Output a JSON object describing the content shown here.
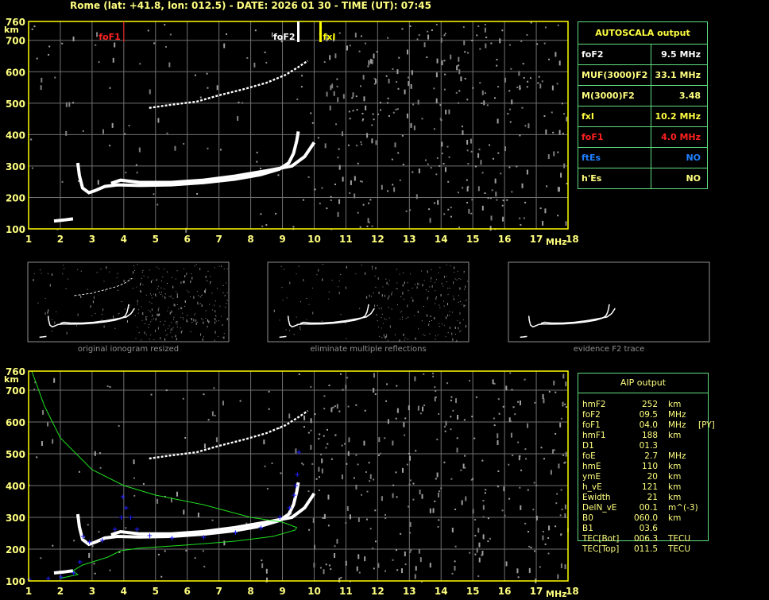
{
  "header": {
    "title": "Rome (lat: +41.8, lon: 012.5) - DATE: 2026 01 30 - TIME (UT): 07:45"
  },
  "markers": [
    {
      "label": "foF1",
      "freq": 4.0,
      "color": "#ff2020"
    },
    {
      "label": "foF2",
      "freq": 9.5,
      "color": "#ffffff"
    },
    {
      "label": "fxI",
      "freq": 10.2,
      "color": "#ffff00"
    }
  ],
  "autoscala": {
    "title": "AUTOSCALA output",
    "rows": [
      {
        "name": "foF2",
        "value": "9.5 MHz",
        "color": "#ffffff"
      },
      {
        "name": "MUF(3000)F2",
        "value": "33.1 MHz",
        "color": "#ffff80"
      },
      {
        "name": "M(3000)F2",
        "value": "3.48",
        "color": "#ffff80"
      },
      {
        "name": "fxI",
        "value": "10.2 MHz",
        "color": "#ffff40"
      },
      {
        "name": "foF1",
        "value": "4.0 MHz",
        "color": "#ff2020"
      },
      {
        "name": "ftEs",
        "value": "NO",
        "color": "#2080ff"
      },
      {
        "name": "h'Es",
        "value": "NO",
        "color": "#ffff80"
      }
    ]
  },
  "aip": {
    "title": "AIP output",
    "rows": [
      {
        "name": "hmF2",
        "value": "252",
        "unit": "km",
        "extra": ""
      },
      {
        "name": "foF2",
        "value": "09.5",
        "unit": "MHz",
        "extra": ""
      },
      {
        "name": "foF1",
        "value": "04.0",
        "unit": "MHz",
        "extra": "[PY]"
      },
      {
        "name": "hmF1",
        "value": "188",
        "unit": "km",
        "extra": ""
      },
      {
        "name": "D1",
        "value": "01.3",
        "unit": "",
        "extra": ""
      },
      {
        "name": "foE",
        "value": "2.7",
        "unit": "MHz",
        "extra": ""
      },
      {
        "name": "hmE",
        "value": "110",
        "unit": "km",
        "extra": ""
      },
      {
        "name": "ymE",
        "value": "20",
        "unit": "km",
        "extra": ""
      },
      {
        "name": "h_vE",
        "value": "121",
        "unit": "km",
        "extra": ""
      },
      {
        "name": "Ewidth",
        "value": "21",
        "unit": "km",
        "extra": ""
      },
      {
        "name": "DelN_vE",
        "value": "00.1",
        "unit": "m^(-3)",
        "extra": ""
      },
      {
        "name": "B0",
        "value": "060.0",
        "unit": "km",
        "extra": ""
      },
      {
        "name": "B1",
        "value": "03.6",
        "unit": "",
        "extra": ""
      },
      {
        "name": "TEC[Bot]",
        "value": "006.3",
        "unit": "TECU",
        "extra": ""
      },
      {
        "name": "TEC[Top]",
        "value": "011.5",
        "unit": "TECU",
        "extra": ""
      }
    ]
  },
  "thumbnails": [
    {
      "caption": "original ionogram resized"
    },
    {
      "caption": "eliminate multiple reflections"
    },
    {
      "caption": "evidence F2 trace"
    }
  ],
  "chart_data": {
    "type": "scatter",
    "xlabel": "MHz",
    "ylabel": "km",
    "xlim": [
      1,
      18
    ],
    "ylim": [
      100,
      760
    ],
    "x_ticks": [
      "1",
      "2",
      "3",
      "4",
      "5",
      "6",
      "7",
      "8",
      "9",
      "10",
      "11",
      "12",
      "13",
      "14",
      "15",
      "16",
      "17",
      "18"
    ],
    "y_ticks": [
      "100",
      "200",
      "300",
      "400",
      "500",
      "600",
      "700",
      "760"
    ],
    "grid": true,
    "traces": {
      "E": [
        [
          1.8,
          125
        ],
        [
          2.1,
          128
        ],
        [
          2.4,
          132
        ]
      ],
      "F_ordinary": [
        [
          2.55,
          310
        ],
        [
          2.6,
          270
        ],
        [
          2.7,
          230
        ],
        [
          2.9,
          215
        ],
        [
          3.1,
          222
        ],
        [
          3.4,
          235
        ],
        [
          3.8,
          240
        ],
        [
          4.5,
          238
        ],
        [
          5.5,
          240
        ],
        [
          6.5,
          247
        ],
        [
          7.5,
          258
        ],
        [
          8.3,
          272
        ],
        [
          8.9,
          290
        ],
        [
          9.2,
          310
        ],
        [
          9.35,
          340
        ],
        [
          9.45,
          380
        ],
        [
          9.5,
          410
        ]
      ],
      "F_extraordinary": [
        [
          3.6,
          245
        ],
        [
          3.9,
          255
        ],
        [
          4.5,
          248
        ],
        [
          5.5,
          248
        ],
        [
          6.5,
          255
        ],
        [
          7.5,
          268
        ],
        [
          8.5,
          285
        ],
        [
          9.3,
          300
        ],
        [
          9.7,
          330
        ],
        [
          10.0,
          375
        ]
      ],
      "second_hop": [
        [
          4.8,
          485
        ],
        [
          5.5,
          495
        ],
        [
          6.3,
          505
        ],
        [
          7,
          525
        ],
        [
          7.8,
          545
        ],
        [
          8.5,
          565
        ],
        [
          9.1,
          590
        ],
        [
          9.5,
          615
        ],
        [
          9.8,
          635
        ]
      ],
      "aip_profile_fit": [
        [
          1,
          105
        ],
        [
          1.6,
          108
        ],
        [
          2.0,
          112
        ],
        [
          2.4,
          125
        ],
        [
          2.6,
          160
        ],
        [
          2.7,
          240
        ],
        [
          2.9,
          222
        ],
        [
          3.3,
          228
        ],
        [
          3.7,
          262
        ],
        [
          3.9,
          300
        ],
        [
          3.95,
          365
        ],
        [
          4.05,
          330
        ],
        [
          4.2,
          300
        ],
        [
          4.4,
          262
        ],
        [
          4.8,
          242
        ],
        [
          5.5,
          235
        ],
        [
          6.5,
          238
        ],
        [
          7.5,
          252
        ],
        [
          8.3,
          268
        ],
        [
          8.9,
          300
        ],
        [
          9.2,
          330
        ],
        [
          9.35,
          370
        ],
        [
          9.4,
          400
        ],
        [
          9.45,
          435
        ],
        [
          9.5,
          505
        ]
      ],
      "density_profile": [
        [
          2.0,
          108
        ],
        [
          2.55,
          120
        ],
        [
          2.4,
          132
        ],
        [
          2.7,
          150
        ],
        [
          3.5,
          175
        ],
        [
          3.9,
          195
        ],
        [
          4.5,
          203
        ],
        [
          6,
          213
        ],
        [
          7.5,
          225
        ],
        [
          8.7,
          240
        ],
        [
          9.4,
          260
        ],
        [
          9.45,
          268
        ],
        [
          9.0,
          285
        ],
        [
          8.0,
          300
        ],
        [
          6.5,
          340
        ],
        [
          5,
          370
        ],
        [
          4,
          400
        ],
        [
          3,
          450
        ],
        [
          2.5,
          500
        ],
        [
          2.0,
          550
        ],
        [
          1.5,
          650
        ],
        [
          1.1,
          760
        ]
      ]
    }
  }
}
